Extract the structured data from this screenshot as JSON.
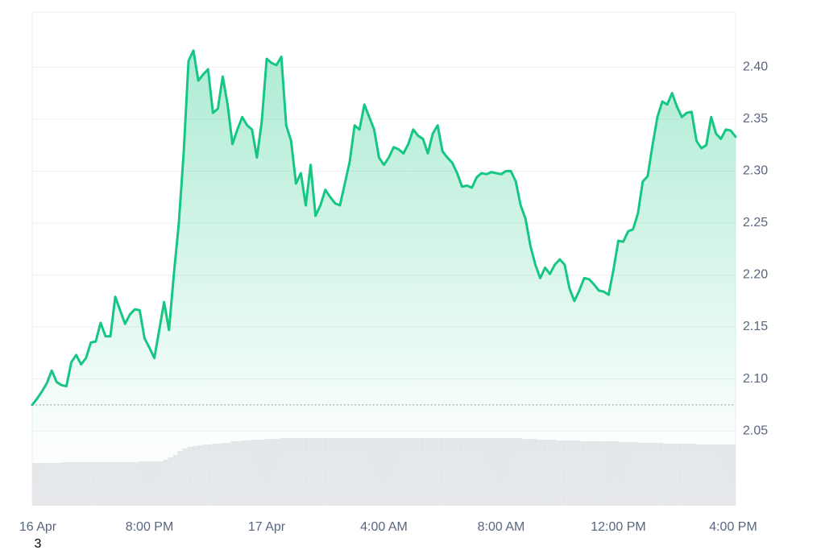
{
  "chart_data": {
    "type": "line",
    "series": [
      {
        "color": "#16c784",
        "values": [
          2.075,
          2.081,
          2.088,
          2.096,
          2.108,
          2.097,
          2.094,
          2.093,
          2.116,
          2.123,
          2.114,
          2.12,
          2.135,
          2.136,
          2.154,
          2.141,
          2.141,
          2.179,
          2.166,
          2.153,
          2.162,
          2.167,
          2.166,
          2.139,
          2.13,
          2.12,
          2.147,
          2.174,
          2.147,
          2.201,
          2.249,
          2.317,
          2.406,
          2.416,
          2.387,
          2.393,
          2.398,
          2.356,
          2.36,
          2.391,
          2.364,
          2.326,
          2.34,
          2.352,
          2.344,
          2.34,
          2.313,
          2.348,
          2.408,
          2.404,
          2.402,
          2.41,
          2.344,
          2.329,
          2.288,
          2.298,
          2.267,
          2.306,
          2.257,
          2.267,
          2.282,
          2.275,
          2.269,
          2.267,
          2.288,
          2.309,
          2.344,
          2.34,
          2.364,
          2.352,
          2.34,
          2.313,
          2.306,
          2.313,
          2.323,
          2.321,
          2.317,
          2.326,
          2.34,
          2.334,
          2.331,
          2.317,
          2.336,
          2.344,
          2.319,
          2.313,
          2.308,
          2.298,
          2.285,
          2.286,
          2.284,
          2.294,
          2.298,
          2.297,
          2.299,
          2.298,
          2.297,
          2.3,
          2.3,
          2.29,
          2.267,
          2.254,
          2.228,
          2.21,
          2.197,
          2.207,
          2.201,
          2.21,
          2.215,
          2.21,
          2.187,
          2.175,
          2.185,
          2.197,
          2.196,
          2.191,
          2.185,
          2.184,
          2.181,
          2.205,
          2.233,
          2.232,
          2.242,
          2.244,
          2.259,
          2.29,
          2.295,
          2.325,
          2.352,
          2.367,
          2.364,
          2.375,
          2.362,
          2.352,
          2.356,
          2.357,
          2.329,
          2.322,
          2.325,
          2.352,
          2.336,
          2.331,
          2.34,
          2.339,
          2.333
        ]
      }
    ],
    "volume": {
      "color": "#e6e8ec",
      "values": [
        53,
        53,
        53,
        53,
        53,
        53,
        54,
        54,
        54,
        54,
        54,
        54,
        54,
        54,
        54,
        54,
        54,
        54,
        54,
        54,
        54,
        54,
        55,
        55,
        55,
        55,
        55,
        57,
        60,
        63,
        68,
        71,
        73,
        74,
        75,
        76,
        76,
        77,
        77,
        78,
        78,
        80,
        80,
        81,
        81,
        82,
        82,
        82,
        83,
        83,
        83,
        84,
        84,
        84,
        84,
        84,
        84,
        84,
        84,
        84,
        84,
        84,
        84,
        84,
        84,
        84,
        84,
        84,
        84,
        84,
        84,
        84,
        84,
        84,
        84,
        84,
        84,
        84,
        84,
        84,
        84,
        84,
        84,
        84,
        84,
        84,
        84,
        84,
        84,
        84,
        84,
        84,
        84,
        84,
        84,
        84,
        84,
        84,
        84,
        84,
        84,
        83,
        83,
        83,
        82,
        82,
        82,
        82,
        81,
        81,
        81,
        81,
        81,
        80,
        80,
        80,
        80,
        80,
        80,
        80,
        80,
        79,
        79,
        79,
        79,
        78,
        78,
        78,
        78,
        78,
        77,
        77,
        77,
        77,
        77,
        77,
        77,
        76,
        76,
        76,
        76,
        76,
        76,
        76,
        76
      ]
    },
    "xlim": [
      0,
      144
    ],
    "xticks": [
      {
        "value": 0,
        "label": "16 Apr"
      },
      {
        "value": 24,
        "label": "8:00 PM"
      },
      {
        "value": 48,
        "label": "17 Apr"
      },
      {
        "value": 72,
        "label": "4:00 AM"
      },
      {
        "value": 96,
        "label": "8:00 AM"
      },
      {
        "value": 120,
        "label": "12:00 PM"
      },
      {
        "value": 144,
        "label": "4:00 PM"
      }
    ],
    "ylim": [
      1.978,
      2.453
    ],
    "yticks": [
      2.05,
      {
        "value": 2.1,
        "label": "2.10"
      },
      2.15,
      {
        "value": 2.2,
        "label": "2.20"
      },
      2.25,
      {
        "value": 2.3,
        "label": "2.30"
      },
      2.35,
      {
        "value": 2.4,
        "label": "2.40"
      }
    ],
    "grid": true,
    "annotation": "3"
  }
}
